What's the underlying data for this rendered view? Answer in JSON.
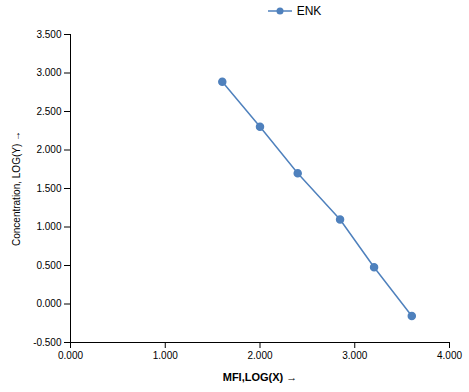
{
  "chart_data": {
    "type": "line",
    "x": [
      1.602,
      2.0,
      2.398,
      2.845,
      3.204,
      3.602
    ],
    "series": [
      {
        "name": "ENK",
        "color": "#4f81bd",
        "marker": "circle",
        "values": [
          2.886,
          2.301,
          1.699,
          1.097,
          0.477,
          -0.155
        ]
      }
    ],
    "x_label": "MFI,LOG(X)",
    "y_label": "Concentration, LOG(Y)",
    "xlim": [
      0.0,
      4.0
    ],
    "ylim": [
      -0.5,
      3.5
    ],
    "xticks": [
      {
        "value": 0,
        "label": "0.000"
      },
      {
        "value": 1,
        "label": "1.000"
      },
      {
        "value": 2,
        "label": "2.000"
      },
      {
        "value": 3,
        "label": "3.000"
      },
      {
        "value": 4,
        "label": "4.000"
      }
    ],
    "yticks": [
      {
        "value": -0.5,
        "label": "-0.500"
      },
      {
        "value": 0,
        "label": "0.000"
      },
      {
        "value": 0.5,
        "label": "0.500"
      },
      {
        "value": 1,
        "label": "1.000"
      },
      {
        "value": 1.5,
        "label": "1.500"
      },
      {
        "value": 2,
        "label": "2.000"
      },
      {
        "value": 2.5,
        "label": "2.500"
      },
      {
        "value": 3,
        "label": "3.000"
      },
      {
        "value": 3.5,
        "label": "3.500"
      }
    ],
    "legend": "top",
    "grid": false
  }
}
